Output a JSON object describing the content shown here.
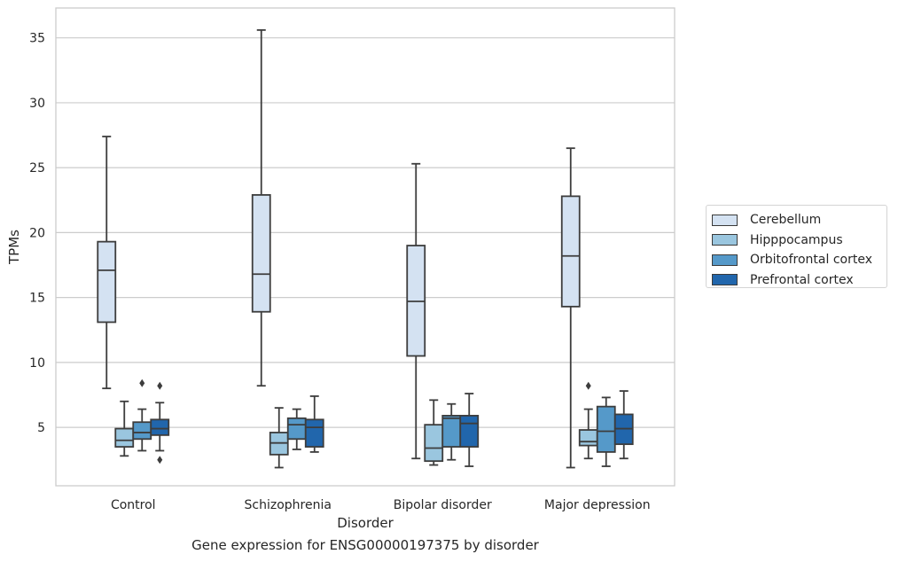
{
  "chart_data": {
    "type": "box",
    "xlabel": "Disorder",
    "ylabel": "TPMs",
    "caption": "Gene expression for ENSG00000197375 by disorder",
    "categories": [
      "Control",
      "Schizophrenia",
      "Bipolar disorder",
      "Major depression"
    ],
    "y_ticks": [
      5,
      10,
      15,
      20,
      25,
      30,
      35
    ],
    "ylim": [
      0.5,
      37.3
    ],
    "grid": "horizontal",
    "legend_placement": "center-right outside",
    "series": [
      {
        "name": "Cerebellum",
        "color": "#d4e2f2",
        "boxes": [
          {
            "whisker_low": 8.0,
            "q1": 13.1,
            "median": 17.1,
            "q3": 19.3,
            "whisker_high": 27.4,
            "outliers": []
          },
          {
            "whisker_low": 8.2,
            "q1": 13.9,
            "median": 16.8,
            "q3": 22.9,
            "whisker_high": 35.6,
            "outliers": []
          },
          {
            "whisker_low": 2.6,
            "q1": 10.5,
            "median": 14.7,
            "q3": 19.0,
            "whisker_high": 25.3,
            "outliers": []
          },
          {
            "whisker_low": 1.9,
            "q1": 14.3,
            "median": 18.2,
            "q3": 22.8,
            "whisker_high": 26.5,
            "outliers": []
          }
        ]
      },
      {
        "name": "Hipppocampus",
        "color": "#9ac6df",
        "boxes": [
          {
            "whisker_low": 2.8,
            "q1": 3.5,
            "median": 4.0,
            "q3": 4.9,
            "whisker_high": 7.0,
            "outliers": []
          },
          {
            "whisker_low": 1.9,
            "q1": 2.9,
            "median": 3.8,
            "q3": 4.6,
            "whisker_high": 6.5,
            "outliers": []
          },
          {
            "whisker_low": 2.1,
            "q1": 2.4,
            "median": 3.4,
            "q3": 5.2,
            "whisker_high": 7.1,
            "outliers": []
          },
          {
            "whisker_low": 2.6,
            "q1": 3.6,
            "median": 3.9,
            "q3": 4.8,
            "whisker_high": 6.4,
            "outliers": [
              8.2
            ]
          }
        ]
      },
      {
        "name": "Orbitofrontal cortex",
        "color": "#5599c9",
        "boxes": [
          {
            "whisker_low": 3.2,
            "q1": 4.1,
            "median": 4.6,
            "q3": 5.4,
            "whisker_high": 6.4,
            "outliers": [
              8.4
            ]
          },
          {
            "whisker_low": 3.3,
            "q1": 4.1,
            "median": 5.2,
            "q3": 5.7,
            "whisker_high": 6.4,
            "outliers": []
          },
          {
            "whisker_low": 2.5,
            "q1": 3.5,
            "median": 5.7,
            "q3": 5.9,
            "whisker_high": 6.8,
            "outliers": []
          },
          {
            "whisker_low": 2.0,
            "q1": 3.1,
            "median": 4.7,
            "q3": 6.6,
            "whisker_high": 7.3,
            "outliers": []
          }
        ]
      },
      {
        "name": "Prefrontal cortex",
        "color": "#2166ac",
        "boxes": [
          {
            "whisker_low": 3.2,
            "q1": 4.4,
            "median": 4.9,
            "q3": 5.6,
            "whisker_high": 6.9,
            "outliers": [
              8.2,
              2.5
            ]
          },
          {
            "whisker_low": 3.1,
            "q1": 3.5,
            "median": 5.0,
            "q3": 5.6,
            "whisker_high": 7.4,
            "outliers": []
          },
          {
            "whisker_low": 2.0,
            "q1": 3.5,
            "median": 5.3,
            "q3": 5.9,
            "whisker_high": 7.6,
            "outliers": []
          },
          {
            "whisker_low": 2.6,
            "q1": 3.7,
            "median": 4.9,
            "q3": 6.0,
            "whisker_high": 7.8,
            "outliers": []
          }
        ]
      }
    ]
  }
}
